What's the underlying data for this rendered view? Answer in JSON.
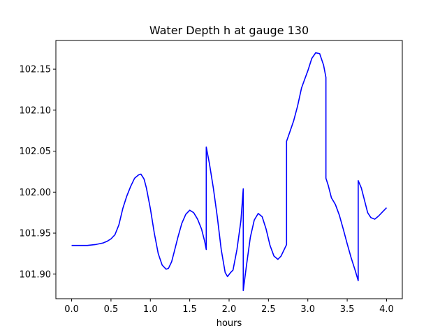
{
  "chart_data": {
    "type": "line",
    "title": "Water Depth h at gauge 130",
    "xlabel": "hours",
    "ylabel": "",
    "xlim": [
      -0.2,
      4.2
    ],
    "ylim": [
      101.87,
      102.185
    ],
    "xticks": [
      0.0,
      0.5,
      1.0,
      1.5,
      2.0,
      2.5,
      3.0,
      3.5,
      4.0
    ],
    "xtick_labels": [
      "0.0",
      "0.5",
      "1.0",
      "1.5",
      "2.0",
      "2.5",
      "3.0",
      "3.5",
      "4.0"
    ],
    "yticks": [
      101.9,
      101.95,
      102.0,
      102.05,
      102.1,
      102.15
    ],
    "ytick_labels": [
      "101.90",
      "101.95",
      "102.00",
      "102.05",
      "102.10",
      "102.15"
    ],
    "grid": false,
    "legend": "none",
    "series": [
      {
        "color": "#0000ff",
        "points": [
          [
            0.0,
            101.935
          ],
          [
            0.2,
            101.935
          ],
          [
            0.3,
            101.936
          ],
          [
            0.4,
            101.938
          ],
          [
            0.45,
            101.94
          ],
          [
            0.5,
            101.943
          ],
          [
            0.55,
            101.948
          ],
          [
            0.6,
            101.96
          ],
          [
            0.65,
            101.98
          ],
          [
            0.7,
            101.995
          ],
          [
            0.75,
            102.007
          ],
          [
            0.8,
            102.017
          ],
          [
            0.85,
            102.021
          ],
          [
            0.88,
            102.022
          ],
          [
            0.92,
            102.016
          ],
          [
            0.95,
            102.005
          ],
          [
            1.0,
            101.98
          ],
          [
            1.05,
            101.95
          ],
          [
            1.1,
            101.925
          ],
          [
            1.15,
            101.911
          ],
          [
            1.2,
            101.906
          ],
          [
            1.23,
            101.907
          ],
          [
            1.27,
            101.915
          ],
          [
            1.3,
            101.926
          ],
          [
            1.35,
            101.945
          ],
          [
            1.4,
            101.962
          ],
          [
            1.45,
            101.973
          ],
          [
            1.5,
            101.978
          ],
          [
            1.55,
            101.975
          ],
          [
            1.6,
            101.967
          ],
          [
            1.65,
            101.955
          ],
          [
            1.69,
            101.94
          ],
          [
            1.71,
            101.93
          ],
          [
            1.71,
            102.055
          ],
          [
            1.75,
            102.035
          ],
          [
            1.8,
            102.005
          ],
          [
            1.85,
            101.97
          ],
          [
            1.9,
            101.93
          ],
          [
            1.95,
            101.902
          ],
          [
            1.98,
            101.897
          ],
          [
            2.02,
            101.902
          ],
          [
            2.05,
            101.905
          ],
          [
            2.1,
            101.93
          ],
          [
            2.15,
            101.965
          ],
          [
            2.18,
            102.004
          ],
          [
            2.18,
            101.88
          ],
          [
            2.22,
            101.91
          ],
          [
            2.27,
            101.945
          ],
          [
            2.32,
            101.966
          ],
          [
            2.37,
            101.974
          ],
          [
            2.42,
            101.97
          ],
          [
            2.47,
            101.955
          ],
          [
            2.52,
            101.935
          ],
          [
            2.57,
            101.922
          ],
          [
            2.62,
            101.918
          ],
          [
            2.66,
            101.922
          ],
          [
            2.7,
            101.93
          ],
          [
            2.73,
            101.936
          ],
          [
            2.73,
            102.062
          ],
          [
            2.77,
            102.073
          ],
          [
            2.82,
            102.087
          ],
          [
            2.87,
            102.105
          ],
          [
            2.92,
            102.127
          ],
          [
            2.95,
            102.135
          ],
          [
            3.0,
            102.148
          ],
          [
            3.05,
            102.163
          ],
          [
            3.1,
            102.17
          ],
          [
            3.15,
            102.169
          ],
          [
            3.2,
            102.155
          ],
          [
            3.23,
            102.14
          ],
          [
            3.23,
            102.017
          ],
          [
            3.26,
            102.008
          ],
          [
            3.3,
            101.993
          ],
          [
            3.35,
            101.985
          ],
          [
            3.4,
            101.972
          ],
          [
            3.45,
            101.955
          ],
          [
            3.5,
            101.937
          ],
          [
            3.55,
            101.92
          ],
          [
            3.6,
            101.905
          ],
          [
            3.64,
            101.892
          ],
          [
            3.64,
            102.014
          ],
          [
            3.68,
            102.005
          ],
          [
            3.72,
            101.99
          ],
          [
            3.76,
            101.975
          ],
          [
            3.8,
            101.969
          ],
          [
            3.85,
            101.967
          ],
          [
            3.9,
            101.971
          ],
          [
            3.95,
            101.976
          ],
          [
            4.0,
            101.981
          ]
        ]
      }
    ]
  }
}
